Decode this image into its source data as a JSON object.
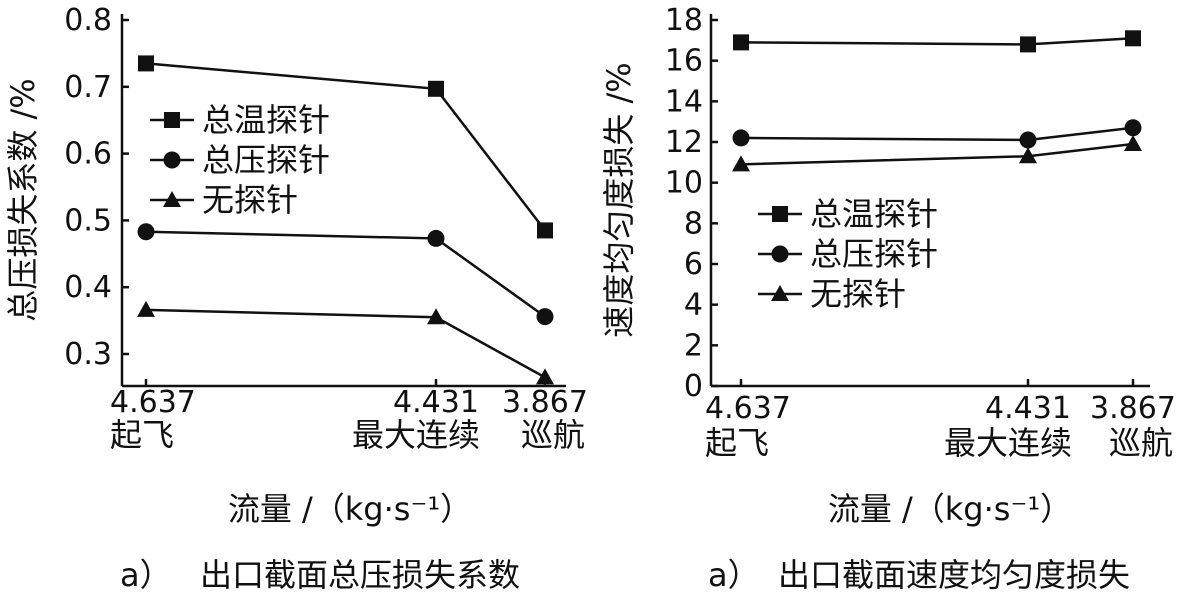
{
  "chart_data": [
    {
      "type": "line",
      "ylabel": "总压损失系数 /%",
      "xlabel": "流量 /（kg·s⁻¹）",
      "caption_letter": "a）",
      "caption_text": "出口截面总压损失系数",
      "categories": [
        "4.637",
        "4.431",
        "3.867"
      ],
      "category_labels": [
        "起飞",
        "最大连续",
        "巡航"
      ],
      "x": [
        4.637,
        4.431,
        3.867
      ],
      "ylim": [
        0.25,
        0.8
      ],
      "yticks": [
        "0.3",
        "0.4",
        "0.5",
        "0.6",
        "0.7",
        "0.8"
      ],
      "grid": false,
      "legend_position": "center-left",
      "series": [
        {
          "name": "总温探针",
          "marker": "square",
          "values": [
            0.735,
            0.697,
            0.485
          ]
        },
        {
          "name": "总压探针",
          "marker": "circle",
          "values": [
            0.483,
            0.473,
            0.356
          ]
        },
        {
          "name": "无探针",
          "marker": "triangle",
          "values": [
            0.366,
            0.355,
            0.265
          ]
        }
      ]
    },
    {
      "type": "line",
      "ylabel": "速度均匀度损失 /%",
      "xlabel": "流量 /（kg·s⁻¹）",
      "caption_letter": "a）",
      "caption_text": "出口截面速度均匀度损失",
      "categories": [
        "4.637",
        "4.431",
        "3.867"
      ],
      "category_labels": [
        "起飞",
        "最大连续",
        "巡航"
      ],
      "x": [
        4.637,
        4.431,
        3.867
      ],
      "ylim": [
        0,
        18
      ],
      "yticks": [
        "0",
        "2",
        "4",
        "6",
        "8",
        "10",
        "12",
        "14",
        "16",
        "18"
      ],
      "grid": false,
      "legend_position": "center-left",
      "series": [
        {
          "name": "总温探针",
          "marker": "square",
          "values": [
            16.9,
            16.8,
            17.1
          ]
        },
        {
          "name": "总压探针",
          "marker": "circle",
          "values": [
            12.2,
            12.1,
            12.7
          ]
        },
        {
          "name": "无探针",
          "marker": "triangle",
          "values": [
            10.9,
            11.3,
            11.9
          ]
        }
      ]
    }
  ]
}
